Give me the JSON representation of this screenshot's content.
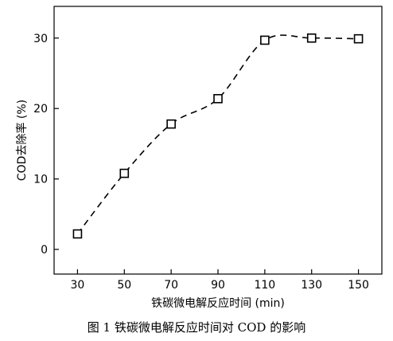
{
  "chart_data": {
    "type": "line",
    "x": [
      30,
      50,
      70,
      90,
      110,
      130,
      150
    ],
    "y": [
      2.2,
      10.8,
      17.8,
      21.4,
      29.7,
      30.0,
      29.9
    ],
    "marker": "open-square",
    "line_style": "dashed-smooth",
    "xlabel": "铁碳微电解反应时间 (min)",
    "ylabel": "COD去除率 (%)",
    "xticks": [
      30,
      50,
      70,
      90,
      110,
      130,
      150
    ],
    "yticks": [
      0,
      10,
      20,
      30
    ],
    "xlim": [
      20,
      160
    ],
    "ylim": [
      -3.5,
      34.5
    ],
    "grid": false,
    "line_color": "#000000"
  },
  "caption": "图 1  铁碳微电解反应时间对 COD 的影响"
}
